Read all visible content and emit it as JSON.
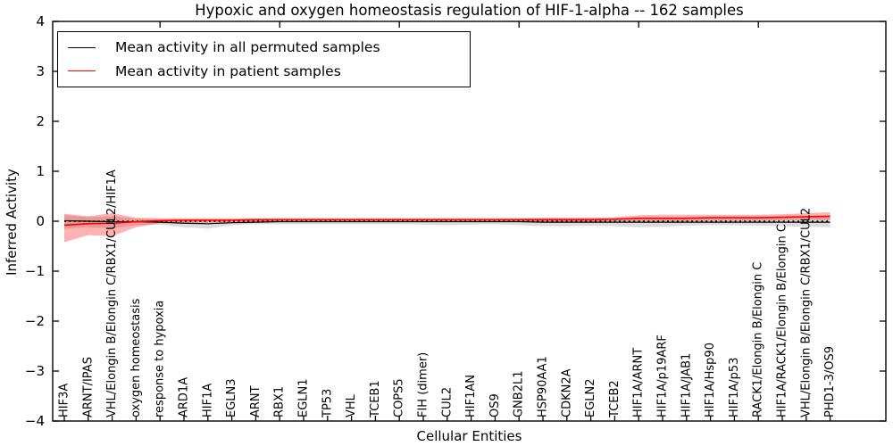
{
  "title": "Hypoxic and oxygen homeostasis regulation of HIF-1-alpha -- 162 samples",
  "legend": {
    "entries": [
      {
        "label": "Mean activity in all permuted samples",
        "color": "#000000"
      },
      {
        "label": "Mean activity in patient samples",
        "color": "#ff0000"
      }
    ]
  },
  "chart_data": {
    "type": "line",
    "title": "Hypoxic and oxygen homeostasis regulation of HIF-1-alpha -- 162 samples",
    "xlabel": "Cellular Entities",
    "ylabel": "Inferred Activity",
    "ylim": [
      -4,
      4
    ],
    "yticks": [
      4,
      3,
      2,
      1,
      0,
      -1,
      -2,
      -3,
      -4
    ],
    "grid": false,
    "legend_position": "upper left",
    "categories": [
      "HIF3A",
      "ARNT/IPAS",
      "VHL/Elongin B/Elongin C/RBX1/CUL2/HIF1A",
      "oxygen homeostasis",
      "response to hypoxia",
      "ARD1A",
      "HIF1A",
      "EGLN3",
      "ARNT",
      "RBX1",
      "EGLN1",
      "TP53",
      "VHL",
      "TCEB1",
      "COPS5",
      "FIH (dimer)",
      "CUL2",
      "HIF1AN",
      "OS9",
      "GNB2L1",
      "HSP90AA1",
      "CDKN2A",
      "EGLN2",
      "TCEB2",
      "HIF1A/ARNT",
      "HIF1A/p19ARF",
      "HIF1A/JAB1",
      "HIF1A/Hsp90",
      "HIF1A/p53",
      "RACK1/Elongin B/Elongin C",
      "HIF1A/RACK1/Elongin B/Elongin C",
      "VHL/Elongin B/Elongin C/RBX1/CUL2",
      "PHD1-3/OS9"
    ],
    "series": [
      {
        "name": "Mean activity in all permuted samples",
        "color": "#000000",
        "band_color": "rgba(130,130,130,0.28)",
        "values": [
          0.01,
          0.0,
          -0.01,
          -0.01,
          -0.02,
          -0.04,
          -0.05,
          -0.03,
          -0.02,
          -0.01,
          -0.01,
          -0.01,
          -0.01,
          -0.01,
          -0.01,
          -0.01,
          -0.01,
          -0.01,
          -0.01,
          -0.01,
          -0.02,
          -0.02,
          -0.02,
          -0.02,
          -0.02,
          -0.02,
          -0.02,
          -0.02,
          -0.02,
          -0.02,
          -0.02,
          -0.02,
          -0.02
        ],
        "band_upper": [
          0.12,
          0.08,
          0.1,
          0.05,
          0.04,
          0.04,
          0.04,
          0.04,
          0.04,
          0.04,
          0.04,
          0.04,
          0.04,
          0.04,
          0.04,
          0.04,
          0.04,
          0.04,
          0.04,
          0.05,
          0.06,
          0.06,
          0.06,
          0.06,
          0.06,
          0.06,
          0.05,
          0.05,
          0.05,
          0.06,
          0.08,
          0.1,
          0.1
        ],
        "band_lower": [
          -0.15,
          -0.12,
          -0.14,
          -0.08,
          -0.07,
          -0.12,
          -0.15,
          -0.08,
          -0.06,
          -0.06,
          -0.06,
          -0.06,
          -0.06,
          -0.06,
          -0.06,
          -0.07,
          -0.08,
          -0.07,
          -0.06,
          -0.08,
          -0.1,
          -0.1,
          -0.09,
          -0.1,
          -0.12,
          -0.11,
          -0.09,
          -0.08,
          -0.08,
          -0.09,
          -0.1,
          -0.11,
          -0.12
        ]
      },
      {
        "name": "Mean activity in patient samples",
        "color": "#ff0000",
        "band_color": "rgba(255,0,0,0.30)",
        "values": [
          -0.08,
          -0.05,
          -0.04,
          -0.01,
          0.01,
          0.02,
          0.02,
          0.02,
          0.03,
          0.03,
          0.03,
          0.03,
          0.03,
          0.03,
          0.03,
          0.03,
          0.03,
          0.03,
          0.03,
          0.03,
          0.03,
          0.03,
          0.03,
          0.04,
          0.06,
          0.06,
          0.06,
          0.07,
          0.07,
          0.07,
          0.08,
          0.09,
          0.1
        ],
        "band_upper": [
          0.15,
          0.1,
          0.16,
          0.07,
          0.06,
          0.06,
          0.06,
          0.06,
          0.06,
          0.06,
          0.06,
          0.06,
          0.06,
          0.06,
          0.06,
          0.06,
          0.06,
          0.06,
          0.06,
          0.06,
          0.07,
          0.07,
          0.07,
          0.08,
          0.12,
          0.13,
          0.13,
          0.13,
          0.13,
          0.13,
          0.14,
          0.16,
          0.18
        ],
        "band_lower": [
          -0.42,
          -0.28,
          -0.3,
          -0.12,
          -0.04,
          -0.03,
          -0.03,
          -0.02,
          -0.01,
          -0.01,
          -0.01,
          -0.01,
          -0.01,
          -0.01,
          -0.01,
          -0.01,
          -0.01,
          -0.01,
          -0.01,
          -0.01,
          -0.01,
          -0.01,
          -0.01,
          0.0,
          0.0,
          0.0,
          0.0,
          0.01,
          0.01,
          0.01,
          0.02,
          0.03,
          0.02
        ]
      }
    ],
    "zero_line": {
      "value": 0,
      "style": "dotted",
      "color": "#000000"
    }
  }
}
